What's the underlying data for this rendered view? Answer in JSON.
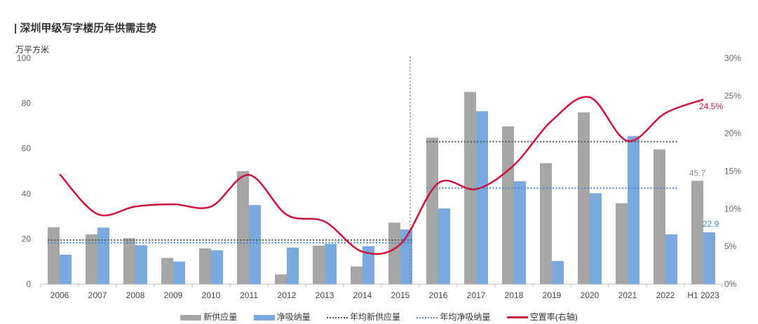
{
  "header": {
    "title": "| 深圳甲级写字楼历年供需走势",
    "y_unit": "万平方米"
  },
  "colors": {
    "supply": "#a6a6a6",
    "absorption": "#7aa9e0",
    "avg_supply": "#555555",
    "avg_absorption": "#4a86c8",
    "vacancy": "#d0103a"
  },
  "chart_data": {
    "type": "bar",
    "categories": [
      "2006",
      "2007",
      "2008",
      "2009",
      "2010",
      "2011",
      "2012",
      "2013",
      "2014",
      "2015",
      "2016",
      "2017",
      "2018",
      "2019",
      "2020",
      "2021",
      "2022",
      "H1 2023"
    ],
    "series": [
      {
        "name": "新供应量",
        "type": "bar",
        "axis": "left",
        "values": [
          25.2,
          22,
          20.3,
          11.6,
          15.8,
          50,
          4.3,
          17,
          7.8,
          27.2,
          64.8,
          85,
          69.8,
          53.5,
          76,
          35.8,
          59.6,
          45.7
        ]
      },
      {
        "name": "净吸纳量",
        "type": "bar",
        "axis": "left",
        "values": [
          13,
          25,
          17.2,
          10,
          15,
          35,
          16.2,
          17.8,
          16.8,
          24.2,
          33.5,
          76.5,
          45.5,
          10.2,
          40.2,
          65.5,
          22,
          22.9
        ]
      },
      {
        "name": "年均新供应量",
        "type": "dotted-line",
        "axis": "left",
        "segments": [
          {
            "from": "2006",
            "to": "2015",
            "value": 19.5
          },
          {
            "from": "2016",
            "to": "2022",
            "value": 63
          }
        ]
      },
      {
        "name": "年均净吸纳量",
        "type": "dotted-line",
        "axis": "left",
        "segments": [
          {
            "from": "2006",
            "to": "2015",
            "value": 18.3
          },
          {
            "from": "2016",
            "to": "2022",
            "value": 42.5
          }
        ]
      },
      {
        "name": "空置率(右轴)",
        "type": "line",
        "axis": "right",
        "values": [
          14.6,
          9.3,
          10.3,
          10.6,
          10.3,
          14.5,
          9.2,
          8.3,
          4.3,
          5.3,
          13.4,
          12.6,
          15.8,
          21.7,
          24.8,
          19.0,
          22.7,
          24.5
        ]
      }
    ],
    "annotations": [
      {
        "category": "H1 2023",
        "series": "新供应量",
        "text": "45.7"
      },
      {
        "category": "H1 2023",
        "series": "净吸纳量",
        "text": "22.9"
      },
      {
        "category": "H1 2023",
        "series": "空置率(右轴)",
        "text": "24.5%"
      }
    ],
    "divider_after": "2015",
    "ylim_left": [
      0,
      100
    ],
    "yticks_left": [
      "0",
      "20",
      "40",
      "60",
      "80",
      "100"
    ],
    "ylim_right": [
      0,
      30
    ],
    "yticks_right": [
      "0%",
      "5%",
      "10%",
      "15%",
      "20%",
      "25%",
      "30%"
    ],
    "legend_position": "bottom",
    "grid": false
  }
}
